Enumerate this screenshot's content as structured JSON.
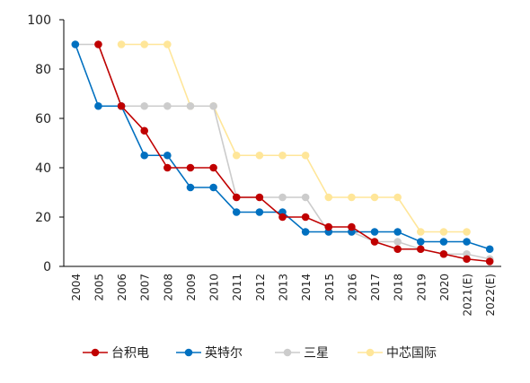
{
  "chart_data": {
    "type": "line",
    "title": "",
    "xlabel": "",
    "ylabel": "",
    "ylim": [
      0,
      100
    ],
    "yticks": [
      0,
      20,
      40,
      60,
      80,
      100
    ],
    "grid": false,
    "legend_position": "bottom",
    "categories": [
      "2004",
      "2005",
      "2006",
      "2007",
      "2008",
      "2009",
      "2010",
      "2011",
      "2012",
      "2013",
      "2014",
      "2015",
      "2016",
      "2017",
      "2018",
      "2019",
      "2020",
      "2021(E)",
      "2022(E)"
    ],
    "series": [
      {
        "name": "台积电",
        "color": "#c00000",
        "values": [
          null,
          90,
          65,
          55,
          40,
          40,
          40,
          28,
          28,
          20,
          20,
          16,
          16,
          10,
          7,
          7,
          5,
          3,
          2
        ]
      },
      {
        "name": "英特尔",
        "color": "#0070c0",
        "values": [
          90,
          65,
          65,
          45,
          45,
          32,
          32,
          22,
          22,
          22,
          14,
          14,
          14,
          14,
          14,
          10,
          10,
          10,
          7
        ]
      },
      {
        "name": "三星",
        "color": "#cccccc",
        "values": [
          90,
          90,
          65,
          65,
          65,
          65,
          65,
          28,
          28,
          28,
          28,
          14,
          14,
          10,
          10,
          7,
          5,
          5,
          3
        ]
      },
      {
        "name": "中芯国际",
        "color": "#ffe699",
        "values": [
          null,
          null,
          90,
          90,
          90,
          65,
          65,
          45,
          45,
          45,
          45,
          28,
          28,
          28,
          28,
          14,
          14,
          14,
          null
        ]
      }
    ]
  }
}
